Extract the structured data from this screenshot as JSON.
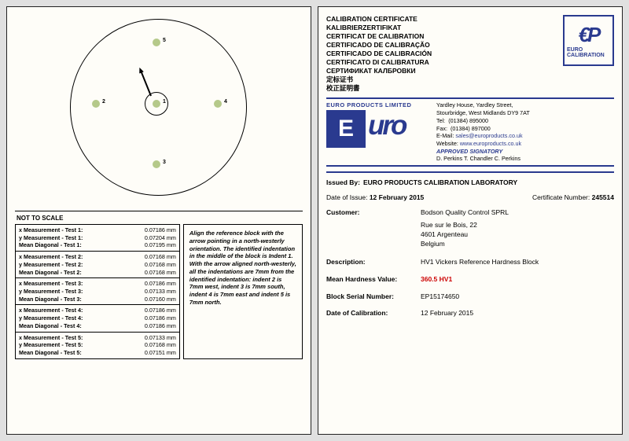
{
  "left": {
    "not_to_scale": "NOT TO SCALE",
    "indents": {
      "1": "1",
      "2": "2",
      "3": "3",
      "4": "4",
      "5": "5"
    },
    "measurements": [
      {
        "test": "1",
        "x": "0.07186 mm",
        "y": "0.07204 mm",
        "mean": "0.07195 mm"
      },
      {
        "test": "2",
        "x": "0.07168 mm",
        "y": "0.07168 mm",
        "mean": "0.07168 mm"
      },
      {
        "test": "3",
        "x": "0.07186 mm",
        "y": "0.07133 mm",
        "mean": "0.07160 mm"
      },
      {
        "test": "4",
        "x": "0.07186 mm",
        "y": "0.07186 mm",
        "mean": "0.07186 mm"
      },
      {
        "test": "5",
        "x": "0.07133 mm",
        "y": "0.07168 mm",
        "mean": "0.07151 mm"
      }
    ],
    "labels": {
      "x": "x Measurement - Test ",
      "y": "y Measurement - Test ",
      "mean": "Mean Diagonal - Test ",
      "colon": ":"
    },
    "instructions": "Align the reference block with the arrow pointing in a north-westerly orientation. The identified indentation in the middle of the block is Indent 1. With the arrow aligned north-westerly, all the indentations are 7mm from the identified indentation: indent 2 is 7mm west, indent 3 is 7mm south, indent 4 is 7mm east and indent 5 is 7mm north."
  },
  "right": {
    "titles": [
      "CALIBRATION CERTIFICATE",
      "KALIBRIERZERTIFIKAT",
      "CERTIFICAT DE CALIBRATION",
      "CERTIFICADO DE CALIBRAÇÃO",
      "CERTIFICADO DE CALIBRACIÓN",
      "CERTIFICATO DI CALIBRATURA",
      "СЕРТИФИКАТ КАЛБРОВКИ",
      "定标证书",
      "校正証明書"
    ],
    "ep_logo": {
      "top": "€P",
      "bottom": "EURO CALIBRATION"
    },
    "band_header": "EURO PRODUCTS LIMITED",
    "euro_brand": {
      "e": "E",
      "uro": "uro"
    },
    "address": {
      "l1": "Yardley House, Yardley Street,",
      "l2": "Stourbridge, West Midlands DY9 7AT",
      "tel_l": "Tel:",
      "tel": "(01384) 895000",
      "fax_l": "Fax:",
      "fax": "(01384) 897000",
      "email_l": "E-Mail:",
      "email": "sales@europroducts.co.uk",
      "web_l": "Website:",
      "web": "www.europroducts.co.uk",
      "sig_l": "APPROVED SIGNATORY",
      "sigs": "D. Perkins      T. Chandler      C. Perkins"
    },
    "issued_by_l": "Issued By:",
    "issued_by": "EURO PRODUCTS CALIBRATION LABORATORY",
    "date_issue_l": "Date of Issue:",
    "date_issue": "12 February 2015",
    "certno_l": "Certificate Number:",
    "certno": "245514",
    "customer_l": "Customer:",
    "customer": [
      "Bodson Quality Control SPRL",
      "Rue sur le Bois, 22",
      "4601 Argenteau",
      "Belgium"
    ],
    "desc_l": "Description:",
    "desc": "HV1  Vickers Reference Hardness Block",
    "mhv_l": "Mean Hardness Value:",
    "mhv": "360.5 HV1",
    "serial_l": "Block Serial Number:",
    "serial": "EP15174650",
    "doc_l": "Date of Calibration:",
    "doc": "12 February 2015"
  }
}
